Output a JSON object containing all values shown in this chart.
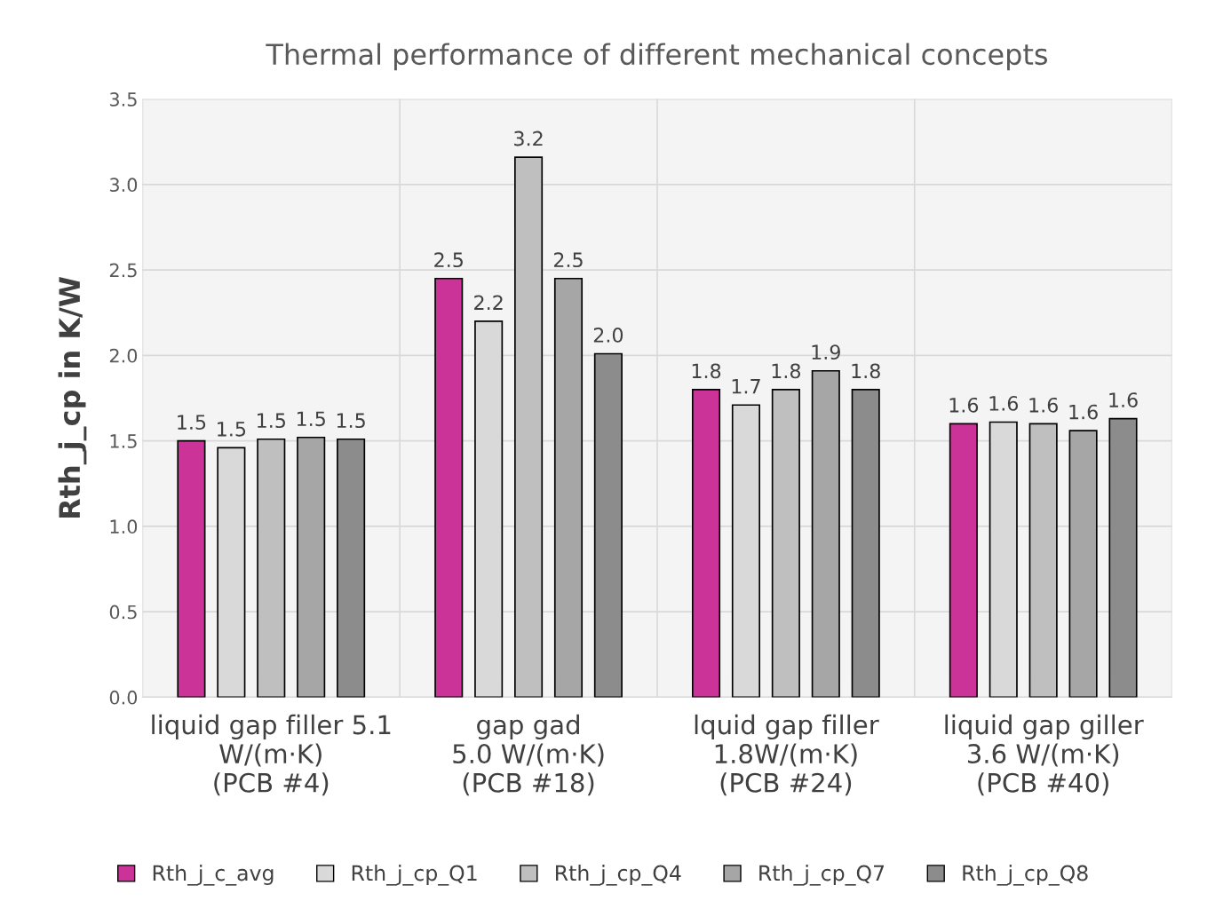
{
  "chart_data": {
    "type": "bar",
    "title": "Thermal performance of different mechanical concepts",
    "ylabel": "Rth_j_cp in K/W",
    "categories": [
      "liquid gap filler 5.1\nW/(m·K)\n(PCB #4)",
      "gap gad\n5.0 W/(m·K)\n(PCB #18)",
      "lquid gap filler\n1.8W/(m·K)\n(PCB #24)",
      "liquid gap giller\n3.6 W/(m·K)\n(PCB #40)"
    ],
    "series": [
      {
        "name": "Rth_j_c_avg",
        "color": "#cc3399",
        "values": [
          1.5,
          2.45,
          1.8,
          1.6
        ],
        "value_labels": [
          "1.5",
          "2.5",
          "1.8",
          "1.6"
        ]
      },
      {
        "name": "Rth_j_cp_Q1",
        "color": "#d9d9d9",
        "values": [
          1.46,
          2.2,
          1.71,
          1.61
        ],
        "value_labels": [
          "1.5",
          "2.2",
          "1.7",
          "1.6"
        ]
      },
      {
        "name": "Rth_j_cp_Q4",
        "color": "#bfbfbf",
        "values": [
          1.51,
          3.16,
          1.8,
          1.6
        ],
        "value_labels": [
          "1.5",
          "3.2",
          "1.8",
          "1.6"
        ]
      },
      {
        "name": "Rth_j_cp_Q7",
        "color": "#a6a6a6",
        "values": [
          1.52,
          2.45,
          1.91,
          1.56
        ],
        "value_labels": [
          "1.5",
          "2.5",
          "1.9",
          "1.6"
        ]
      },
      {
        "name": "Rth_j_cp_Q8",
        "color": "#8c8c8c",
        "values": [
          1.51,
          2.01,
          1.8,
          1.63
        ],
        "value_labels": [
          "1.5",
          "2.0",
          "1.8",
          "1.6"
        ]
      }
    ],
    "ylim": [
      0,
      3.5
    ],
    "yticks": [
      {
        "value": 0,
        "label": "0.0"
      },
      {
        "value": 0.5,
        "label": "0.5"
      },
      {
        "value": 1,
        "label": "1.0"
      },
      {
        "value": 1.5,
        "label": "1.5"
      },
      {
        "value": 2,
        "label": "2.0"
      },
      {
        "value": 2.5,
        "label": "2.5"
      },
      {
        "value": 3,
        "label": "3.0"
      },
      {
        "value": 3.5,
        "label": "3.5"
      }
    ],
    "grid": true,
    "legend": "bottom"
  }
}
